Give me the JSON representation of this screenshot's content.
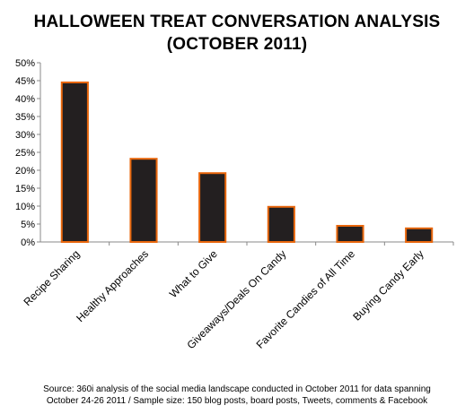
{
  "chart_data": {
    "type": "bar",
    "title": "HALLOWEEN TREAT CONVERSATION ANALYSIS",
    "subtitle": "(OCTOBER 2011)",
    "categories": [
      "Recipe Sharing",
      "Healthy Approaches",
      "What to Give",
      "Giveaways/Deals On Candy",
      "Favorite Candies of All Time",
      "Buying Candy Early"
    ],
    "values": [
      44.5,
      23.2,
      19.2,
      9.8,
      4.5,
      3.8
    ],
    "value_unit": "%",
    "ylim": [
      0,
      50
    ],
    "yticks": [
      "0%",
      "5%",
      "10%",
      "15%",
      "20%",
      "25%",
      "30%",
      "35%",
      "40%",
      "45%",
      "50%"
    ],
    "grid": false,
    "legend": "none",
    "bar_fill": "#231f20",
    "bar_stroke": "#e8660c",
    "source_line_1": "Source: 360i analysis of the  social media landscape  conducted in October 2011 for data  spanning",
    "source_line_2": "October 24-26 2011 / Sample size:  150 blog posts, board posts, Tweets, comments & Facebook"
  }
}
